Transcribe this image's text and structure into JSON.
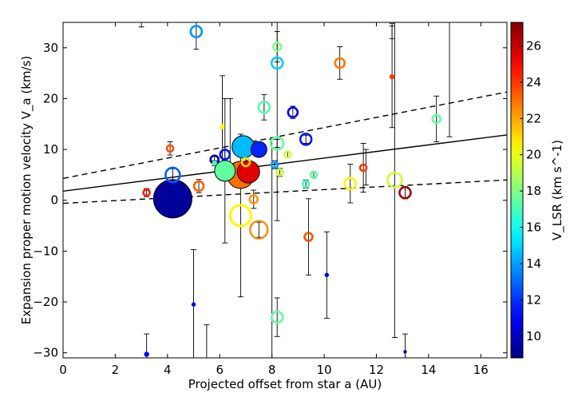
{
  "chart_data": {
    "type": "scatter",
    "title": "",
    "xlabel": "Projected offset from star a (AU)",
    "ylabel": "Expansion proper motion velocity V_a (km/s)",
    "colorbar_label": "V_LSR (km s^-1)",
    "xlim": [
      0,
      17
    ],
    "ylim": [
      -31,
      35
    ],
    "colorbar_range": [
      8.8,
      27.3
    ],
    "x_ticks": [
      0,
      2,
      4,
      6,
      8,
      10,
      12,
      14,
      16
    ],
    "y_ticks": [
      -30,
      -20,
      -10,
      0,
      10,
      20,
      30
    ],
    "colorbar_ticks": [
      10,
      12,
      14,
      16,
      18,
      20,
      22,
      24,
      26
    ],
    "fit_line": {
      "intercept": 1.8,
      "slope": 0.65
    },
    "fit_bounds": [
      {
        "intercept": 4.3,
        "slope": 1.0
      },
      {
        "intercept": -0.6,
        "slope": 0.27
      }
    ],
    "points": [
      {
        "x": 4.2,
        "y": 0.3,
        "err": 0.5,
        "vlsr": 9.3,
        "size": 24
      },
      {
        "x": 6.8,
        "y": 5.0,
        "err": 1.5,
        "vlsr": 23.0,
        "size": 17
      },
      {
        "x": 7.1,
        "y": 5.6,
        "err": 1.5,
        "vlsr": 25.5,
        "size": 14
      },
      {
        "x": 6.9,
        "y": 10.5,
        "err": 2.0,
        "vlsr": 14.5,
        "size": 14
      },
      {
        "x": 6.8,
        "y": -3.0,
        "err": 16.0,
        "vlsr": 20.5,
        "size": 13
      },
      {
        "x": 6.2,
        "y": 5.8,
        "err": 14.2,
        "vlsr": 17.5,
        "size": 13
      },
      {
        "x": 7.5,
        "y": -5.8,
        "err": 1.5,
        "vlsr": 22.5,
        "size": 11
      },
      {
        "x": 7.5,
        "y": 10.0,
        "err": 1.0,
        "vlsr": 11.8,
        "size": 10
      },
      {
        "x": 12.7,
        "y": 4.0,
        "err": 31.0,
        "vlsr": 19.5,
        "size": 9
      },
      {
        "x": 4.2,
        "y": 5.0,
        "err": 1.2,
        "vlsr": 12.8,
        "size": 9
      },
      {
        "x": 8.2,
        "y": 27.0,
        "err": 31.0,
        "vlsr": 14.8,
        "size": 7
      },
      {
        "x": 8.2,
        "y": 11.2,
        "err": 0.8,
        "vlsr": 17.5,
        "size": 8
      },
      {
        "x": 5.1,
        "y": 33.2,
        "err": 3.5,
        "vlsr": 13.8,
        "size": 7
      },
      {
        "x": 13.1,
        "y": 1.5,
        "err": 1.2,
        "vlsr": 26.7,
        "size": 7
      },
      {
        "x": 9.3,
        "y": 12.0,
        "err": 0.8,
        "vlsr": 11.5,
        "size": 7
      },
      {
        "x": 7.7,
        "y": 18.3,
        "err": 2.5,
        "vlsr": 17.2,
        "size": 7
      },
      {
        "x": 8.2,
        "y": -23.0,
        "err": 3.8,
        "vlsr": 17.5,
        "size": 7
      },
      {
        "x": 11.0,
        "y": 3.3,
        "err": 3.8,
        "vlsr": 20.5,
        "size": 7
      },
      {
        "x": 10.6,
        "y": 27.0,
        "err": 3.2,
        "vlsr": 22.8,
        "size": 6
      },
      {
        "x": 8.8,
        "y": 17.3,
        "err": 1.2,
        "vlsr": 11.0,
        "size": 6
      },
      {
        "x": 6.2,
        "y": 9.0,
        "err": 0.8,
        "vlsr": 11.5,
        "size": 6
      },
      {
        "x": 5.2,
        "y": 2.8,
        "err": 1.3,
        "vlsr": 23.2,
        "size": 6
      },
      {
        "x": 8.2,
        "y": 30.2,
        "err": 3.0,
        "vlsr": 18.0,
        "size": 5
      },
      {
        "x": 7.0,
        "y": 7.5,
        "err": 1.3,
        "vlsr": 21.0,
        "size": 5
      },
      {
        "x": 7.3,
        "y": 0.2,
        "err": 1.8,
        "vlsr": 22.3,
        "size": 5
      },
      {
        "x": 9.4,
        "y": -7.2,
        "err": 7.5,
        "vlsr": 23.5,
        "size": 5
      },
      {
        "x": 14.3,
        "y": 16.0,
        "err": 4.5,
        "vlsr": 17.5,
        "size": 5
      },
      {
        "x": 5.8,
        "y": 8.0,
        "err": 0.6,
        "vlsr": 9.5,
        "size": 5
      },
      {
        "x": 8.6,
        "y": 9.0,
        "err": 0.5,
        "vlsr": 19.5,
        "size": 4
      },
      {
        "x": 8.3,
        "y": 5.5,
        "err": 0.8,
        "vlsr": 19.5,
        "size": 4
      },
      {
        "x": 9.6,
        "y": 5.0,
        "err": 0.5,
        "vlsr": 17.5,
        "size": 4
      },
      {
        "x": 9.3,
        "y": 3.2,
        "err": 0.8,
        "vlsr": 17.0,
        "size": 4
      },
      {
        "x": 8.1,
        "y": 7.0,
        "err": 0.8,
        "vlsr": 14.0,
        "size": 4
      },
      {
        "x": 11.5,
        "y": 6.4,
        "err": 4.8,
        "vlsr": 24.0,
        "size": 4
      },
      {
        "x": 4.1,
        "y": 10.2,
        "err": 1.3,
        "vlsr": 23.5,
        "size": 4
      },
      {
        "x": 3.2,
        "y": 1.5,
        "err": 0.8,
        "vlsr": 24.5,
        "size": 4
      },
      {
        "x": 5.8,
        "y": 7.3,
        "err": 0.5,
        "vlsr": 17.0,
        "size": 3
      },
      {
        "x": 6.1,
        "y": 14.5,
        "err": 10.0,
        "vlsr": 20.5,
        "size": 3
      },
      {
        "x": 12.6,
        "y": 24.3,
        "err": 10.0,
        "vlsr": 24.0,
        "size": 3
      },
      {
        "x": 3.2,
        "y": -30.3,
        "err": 4.0,
        "vlsr": 11.0,
        "size": 3
      },
      {
        "x": 5.0,
        "y": -20.5,
        "err": 10.8,
        "vlsr": 11.0,
        "size": 2.5
      },
      {
        "x": 10.1,
        "y": -14.7,
        "err": 8.5,
        "vlsr": 11.0,
        "size": 2.5
      },
      {
        "x": 13.1,
        "y": -29.8,
        "err": 3.5,
        "vlsr": 10.0,
        "size": 2
      }
    ],
    "extra_errorbars": [
      {
        "x": 5.5,
        "y": -28.0,
        "err": 3.5
      },
      {
        "x": 6.4,
        "y": 12.0,
        "err": 8.0
      },
      {
        "x": 8.0,
        "y": -14.0,
        "err": 26.0
      },
      {
        "x": 11.6,
        "y": 6.5,
        "err": 3.5
      },
      {
        "x": 12.6,
        "y": 33.3,
        "err": 1.5
      },
      {
        "x": 14.8,
        "y": 24.0,
        "err": 11.5
      },
      {
        "x": 3.0,
        "y": 34.6,
        "err": 0.5
      }
    ]
  }
}
